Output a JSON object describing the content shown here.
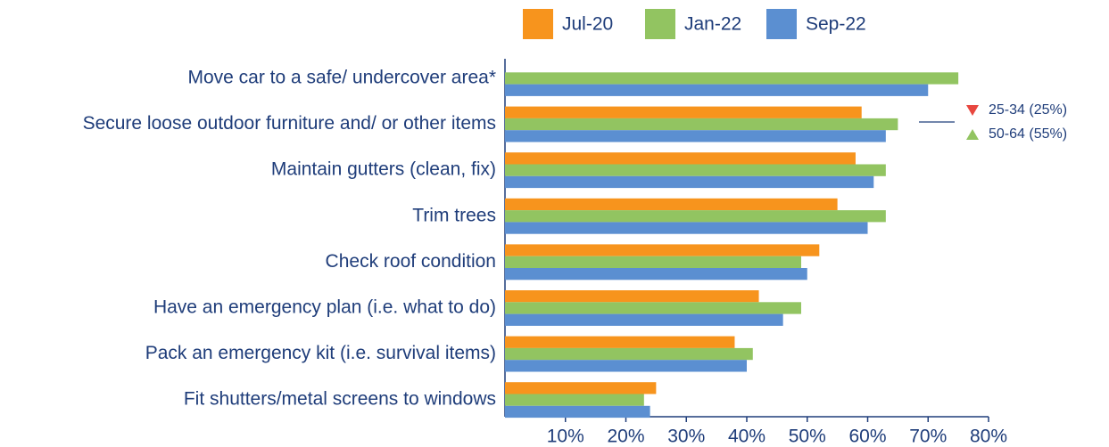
{
  "chart_data": {
    "type": "bar",
    "orientation": "horizontal",
    "categories": [
      "Move car to a safe/ undercover area*",
      "Secure loose outdoor furniture and/ or other items",
      "Maintain gutters (clean, fix)",
      "Trim trees",
      "Check roof condition",
      "Have an emergency plan (i.e. what to do)",
      "Pack an emergency kit (i.e. survival items)",
      "Fit shutters/metal screens to windows"
    ],
    "series": [
      {
        "name": "Jul-20",
        "color": "#f7941d",
        "values": [
          null,
          59,
          58,
          55,
          52,
          42,
          38,
          25
        ]
      },
      {
        "name": "Jan-22",
        "color": "#92c461",
        "values": [
          75,
          65,
          63,
          63,
          49,
          49,
          41,
          23
        ]
      },
      {
        "name": "Sep-22",
        "color": "#5b8fd1",
        "values": [
          70,
          63,
          61,
          60,
          50,
          46,
          40,
          24
        ]
      }
    ],
    "xlim": [
      0,
      80
    ],
    "xticks": [
      {
        "value": 10,
        "label": "10%"
      },
      {
        "value": 20,
        "label": "20%"
      },
      {
        "value": 30,
        "label": "30%"
      },
      {
        "value": 40,
        "label": "40%"
      },
      {
        "value": 50,
        "label": "50%"
      },
      {
        "value": 60,
        "label": "60%"
      },
      {
        "value": 70,
        "label": "70%"
      },
      {
        "value": 80,
        "label": "80%"
      }
    ],
    "legend": "top",
    "annotations": [
      {
        "text": "25-34 (25%)",
        "marker": "down",
        "color": "#e8473f"
      },
      {
        "text": "50-64 (55%)",
        "marker": "up",
        "color": "#92c461"
      }
    ]
  }
}
